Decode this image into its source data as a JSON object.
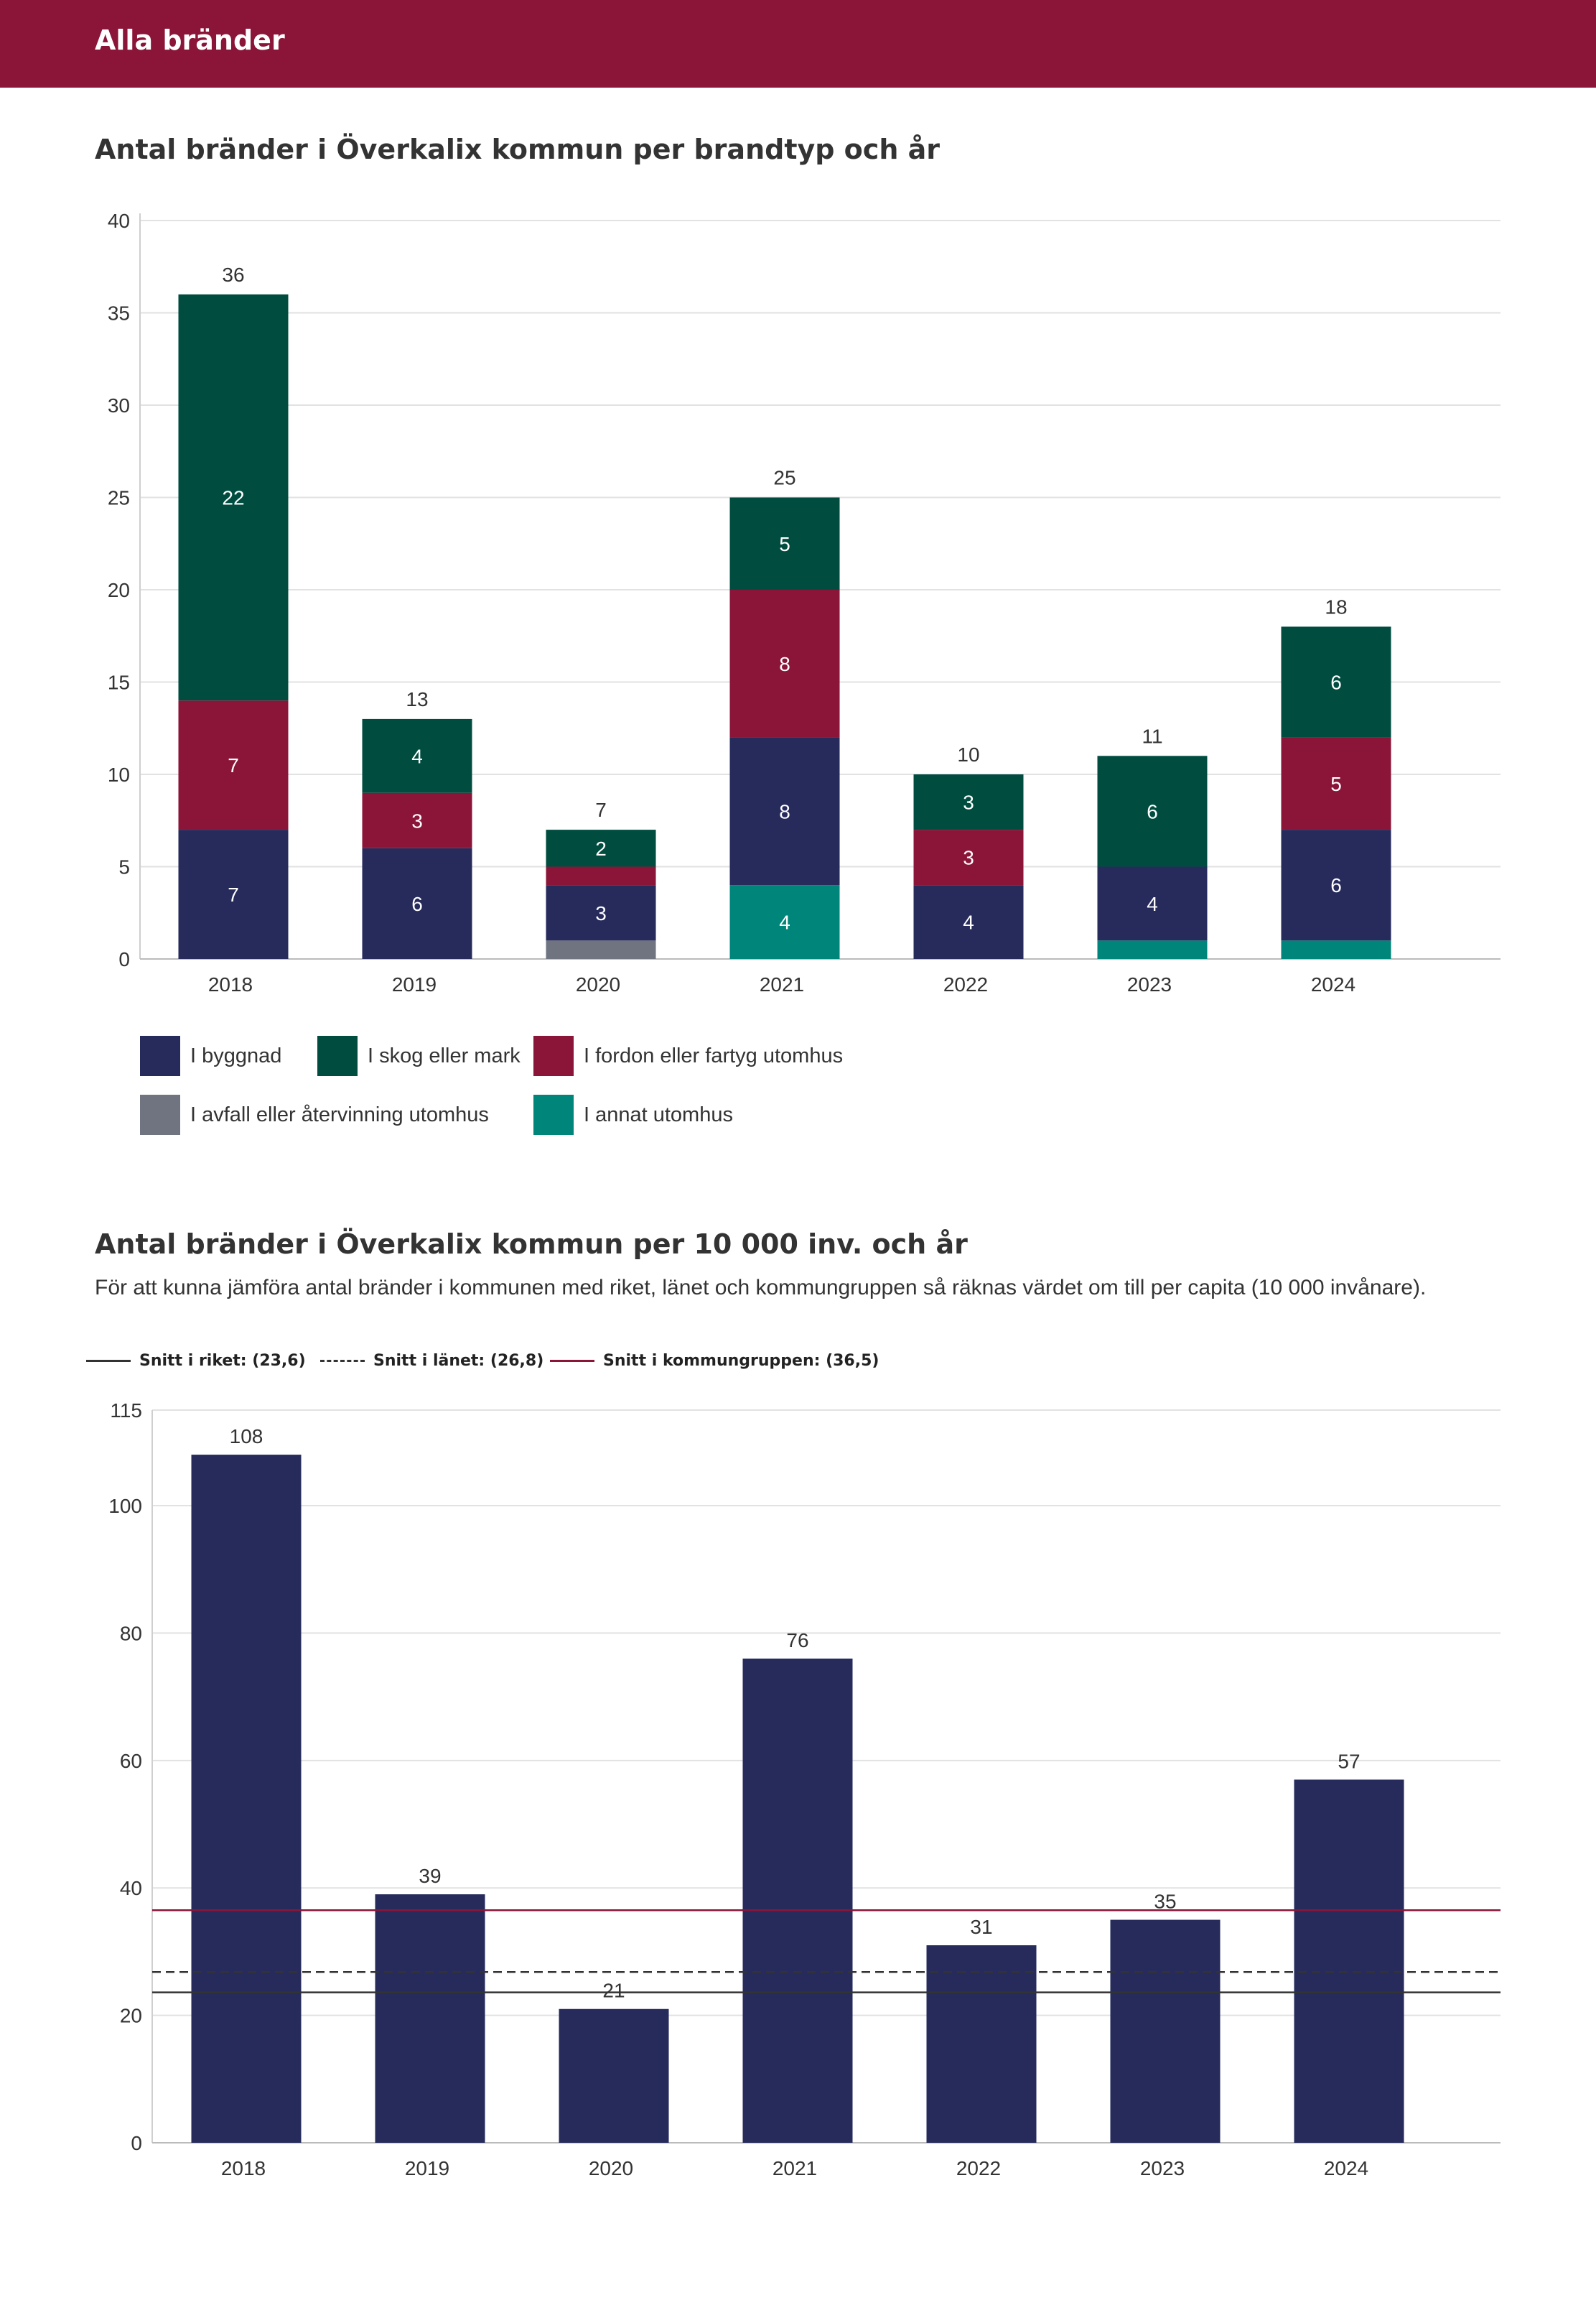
{
  "header": {
    "title": "Alla bränder"
  },
  "chart1_title": "Antal bränder i Överkalix kommun per brandtyp och år",
  "chart2_title": "Antal bränder i Överkalix kommun per 10 000 inv. och år",
  "chart2_subtitle": "För att kunna jämföra antal bränder i kommunen med riket, länet och kommungruppen så räknas värdet om till per capita (10 000 invånare).",
  "colors": {
    "header": "#8a1538",
    "byggnad": "#262b5c",
    "skog": "#004d40",
    "fordon": "#8a1538",
    "avfall": "#6f7480",
    "annat": "#00857a",
    "bar2": "#262b5c",
    "kommungrupp": "#8a1538"
  },
  "chart_data": [
    {
      "type": "bar",
      "stacked": true,
      "title": "Antal bränder i Överkalix kommun per brandtyp och år",
      "categories": [
        "2018",
        "2019",
        "2020",
        "2021",
        "2022",
        "2023",
        "2024"
      ],
      "series": [
        {
          "name": "I annat utomhus",
          "key": "annat",
          "values": [
            0,
            0,
            0,
            4,
            0,
            1,
            1
          ],
          "labels": [
            null,
            null,
            null,
            "4",
            null,
            null,
            null
          ]
        },
        {
          "name": "I avfall eller återvinning utomhus",
          "key": "avfall",
          "values": [
            0,
            0,
            1,
            0,
            0,
            0,
            0
          ],
          "labels": [
            null,
            null,
            null,
            null,
            null,
            null,
            null
          ]
        },
        {
          "name": "I byggnad",
          "key": "byggnad",
          "values": [
            7,
            6,
            3,
            8,
            4,
            4,
            6
          ],
          "labels": [
            "7",
            "6",
            "3",
            "8",
            "4",
            "4",
            "6"
          ]
        },
        {
          "name": "I fordon eller fartyg utomhus",
          "key": "fordon",
          "values": [
            7,
            3,
            1,
            8,
            3,
            0,
            5
          ],
          "labels": [
            "7",
            "3",
            null,
            "8",
            "3",
            null,
            "5"
          ]
        },
        {
          "name": "I skog eller mark",
          "key": "skog",
          "values": [
            22,
            4,
            2,
            5,
            3,
            6,
            6
          ],
          "labels": [
            "22",
            "4",
            "2",
            "5",
            "3",
            "6",
            "6"
          ]
        }
      ],
      "totals": [
        "36",
        "13",
        "7",
        "25",
        "10",
        "11",
        "18"
      ],
      "ylim": [
        0,
        40
      ],
      "yticks": [
        "0",
        "5",
        "10",
        "15",
        "20",
        "25",
        "30",
        "35",
        "40"
      ],
      "legend": [
        {
          "key": "byggnad",
          "label": "I byggnad"
        },
        {
          "key": "skog",
          "label": "I skog eller mark"
        },
        {
          "key": "fordon",
          "label": "I fordon eller fartyg utomhus"
        },
        {
          "key": "avfall",
          "label": "I avfall eller återvinning utomhus"
        },
        {
          "key": "annat",
          "label": "I annat utomhus"
        }
      ]
    },
    {
      "type": "bar",
      "title": "Antal bränder i Överkalix kommun per 10 000 inv. och år",
      "categories": [
        "2018",
        "2019",
        "2020",
        "2021",
        "2022",
        "2023",
        "2024"
      ],
      "values": [
        108,
        39,
        21,
        76,
        31,
        35,
        57
      ],
      "value_labels": [
        "108",
        "39",
        "21",
        "76",
        "31",
        "35",
        "57"
      ],
      "ylim": [
        0,
        115
      ],
      "yticks": [
        "0",
        "20",
        "40",
        "60",
        "80",
        "100",
        "115"
      ],
      "reference_lines": [
        {
          "label": "Snitt i riket: (23,6)",
          "value": 23.6,
          "style": "solid",
          "color": "#333333"
        },
        {
          "label": "Snitt i länet: (26,8)",
          "value": 26.8,
          "style": "dashed",
          "color": "#333333"
        },
        {
          "label": "Snitt i kommungruppen: (36,5)",
          "value": 36.5,
          "style": "solid",
          "color": "#8a1538"
        }
      ]
    }
  ]
}
